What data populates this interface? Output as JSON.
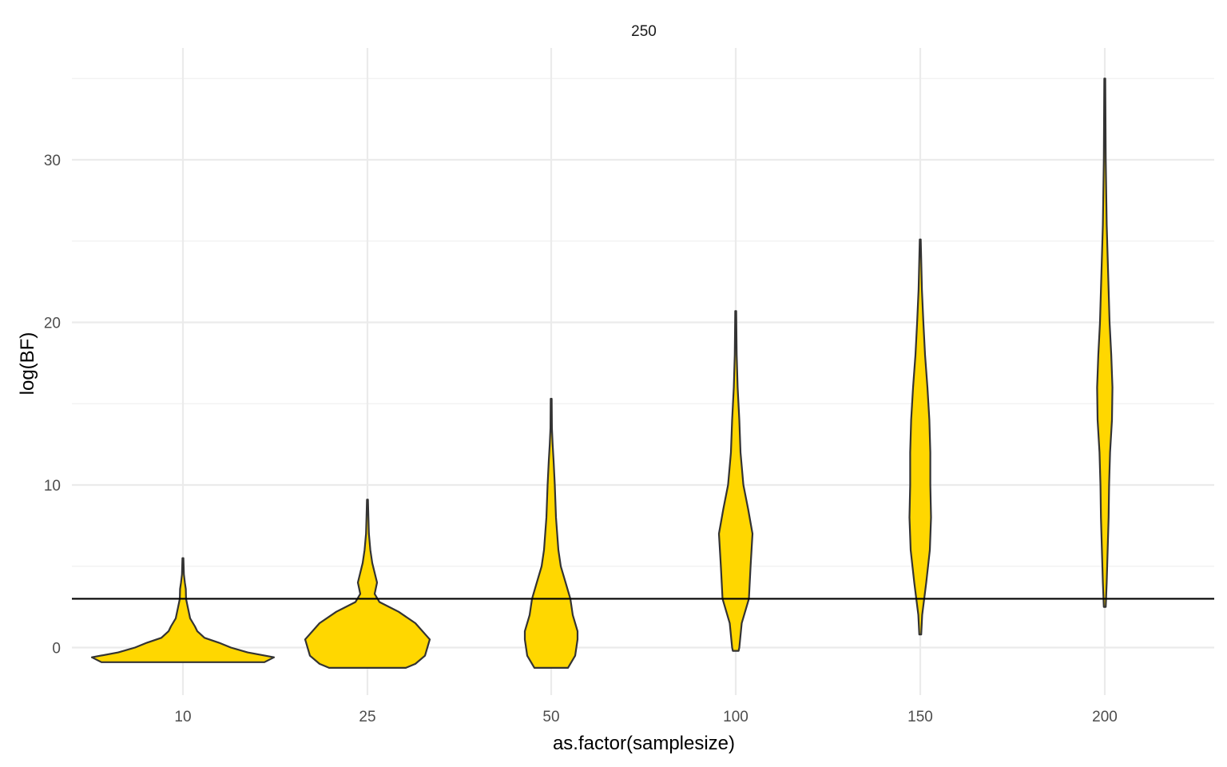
{
  "chart_data": {
    "type": "violin",
    "facet_label": "250",
    "xlabel": "as.factor(samplesize)",
    "ylabel": "log(BF)",
    "categories": [
      "10",
      "25",
      "50",
      "100",
      "150",
      "200"
    ],
    "ylim": [
      -2.95,
      36.3
    ],
    "y_ticks": [
      0,
      10,
      20,
      30
    ],
    "y_minor_ticks": [
      5,
      15,
      25,
      35
    ],
    "hline": 3,
    "fill_color": "#FFD700",
    "outline_color": "#333333",
    "grid": true,
    "series": [
      {
        "category": "10",
        "min": -0.9,
        "max": 5.5,
        "profile": [
          [
            -0.9,
            0.34
          ],
          [
            -0.6,
            0.38
          ],
          [
            -0.3,
            0.27
          ],
          [
            0.0,
            0.2
          ],
          [
            0.3,
            0.15
          ],
          [
            0.6,
            0.09
          ],
          [
            1.0,
            0.06
          ],
          [
            1.3,
            0.05
          ],
          [
            1.8,
            0.03
          ],
          [
            2.5,
            0.02
          ],
          [
            3.0,
            0.013
          ],
          [
            3.6,
            0.012
          ],
          [
            4.0,
            0.008
          ],
          [
            4.5,
            0.004
          ],
          [
            5.0,
            0.003
          ],
          [
            5.5,
            0.002
          ]
        ]
      },
      {
        "category": "25",
        "min": -1.25,
        "max": 9.1,
        "profile": [
          [
            -1.25,
            0.16
          ],
          [
            -1.0,
            0.2
          ],
          [
            -0.5,
            0.24
          ],
          [
            0.5,
            0.26
          ],
          [
            1.5,
            0.2
          ],
          [
            2.2,
            0.13
          ],
          [
            2.8,
            0.05
          ],
          [
            3.3,
            0.03
          ],
          [
            4.0,
            0.04
          ],
          [
            4.6,
            0.03
          ],
          [
            5.2,
            0.02
          ],
          [
            6.0,
            0.012
          ],
          [
            7.0,
            0.006
          ],
          [
            8.0,
            0.004
          ],
          [
            9.1,
            0.002
          ]
        ]
      },
      {
        "category": "50",
        "min": -1.25,
        "max": 15.3,
        "profile": [
          [
            -1.25,
            0.07
          ],
          [
            -0.5,
            0.1
          ],
          [
            0.5,
            0.11
          ],
          [
            1.0,
            0.11
          ],
          [
            2.0,
            0.09
          ],
          [
            3.0,
            0.08
          ],
          [
            4.0,
            0.06
          ],
          [
            5.0,
            0.04
          ],
          [
            6.0,
            0.03
          ],
          [
            8.0,
            0.02
          ],
          [
            10.0,
            0.015
          ],
          [
            11.5,
            0.01
          ],
          [
            12.5,
            0.006
          ],
          [
            13.5,
            0.003
          ],
          [
            15.3,
            0.002
          ]
        ]
      },
      {
        "category": "100",
        "min": -0.2,
        "max": 20.7,
        "profile": [
          [
            -0.2,
            0.012
          ],
          [
            0.0,
            0.015
          ],
          [
            1.5,
            0.025
          ],
          [
            3.0,
            0.055
          ],
          [
            5.0,
            0.062
          ],
          [
            7.0,
            0.07
          ],
          [
            8.5,
            0.052
          ],
          [
            10.0,
            0.032
          ],
          [
            12.0,
            0.02
          ],
          [
            14.0,
            0.015
          ],
          [
            16.0,
            0.008
          ],
          [
            18.0,
            0.004
          ],
          [
            20.7,
            0.002
          ]
        ]
      },
      {
        "category": "150",
        "min": 0.8,
        "max": 25.1,
        "profile": [
          [
            0.8,
            0.004
          ],
          [
            2.0,
            0.008
          ],
          [
            4.0,
            0.025
          ],
          [
            6.0,
            0.04
          ],
          [
            8.0,
            0.045
          ],
          [
            10.0,
            0.042
          ],
          [
            12.0,
            0.042
          ],
          [
            14.0,
            0.038
          ],
          [
            16.0,
            0.03
          ],
          [
            18.0,
            0.02
          ],
          [
            20.0,
            0.013
          ],
          [
            22.0,
            0.007
          ],
          [
            25.1,
            0.002
          ]
        ]
      },
      {
        "category": "200",
        "min": 2.5,
        "max": 35.0,
        "profile": [
          [
            2.5,
            0.004
          ],
          [
            4.0,
            0.008
          ],
          [
            6.0,
            0.012
          ],
          [
            8.0,
            0.016
          ],
          [
            10.0,
            0.018
          ],
          [
            12.0,
            0.022
          ],
          [
            14.0,
            0.03
          ],
          [
            16.0,
            0.032
          ],
          [
            18.0,
            0.027
          ],
          [
            20.0,
            0.02
          ],
          [
            23.0,
            0.014
          ],
          [
            26.0,
            0.008
          ],
          [
            30.0,
            0.004
          ],
          [
            35.0,
            0.002
          ]
        ]
      }
    ]
  }
}
